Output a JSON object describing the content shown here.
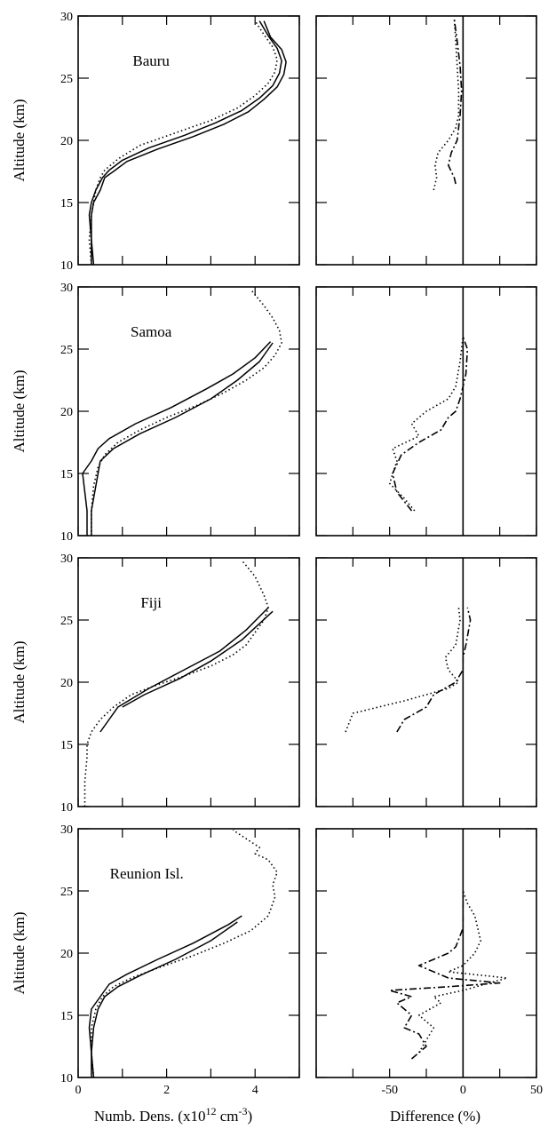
{
  "chart_data": [
    {
      "type": "line",
      "panel": "left",
      "station": "Bauru",
      "ylabel": "Altitude (km)",
      "xlim": [
        0,
        5
      ],
      "ylim": [
        10,
        30
      ],
      "x_ticks": [],
      "y_ticks": [
        "10",
        "15",
        "20",
        "25",
        "30"
      ],
      "series": [
        {
          "style": "dotted",
          "x": [
            0.3,
            0.25,
            0.3,
            0.35,
            0.4,
            0.5,
            0.6,
            0.9,
            1.4,
            2.2,
            3.0,
            3.6,
            4.0,
            4.3,
            4.45,
            4.5,
            4.4,
            4.2,
            4.0
          ],
          "y": [
            10,
            12,
            14,
            15,
            16,
            17,
            17.6,
            18.5,
            19.6,
            20.6,
            21.6,
            22.6,
            23.6,
            24.6,
            25.5,
            26.5,
            27.5,
            28.5,
            29.6
          ]
        },
        {
          "style": "solid",
          "x": [
            0.3,
            0.3,
            0.25,
            0.3,
            0.4,
            0.55,
            0.7,
            1.0,
            1.6,
            2.4,
            3.1,
            3.7,
            4.1,
            4.4,
            4.55,
            4.6,
            4.5,
            4.3,
            4.1
          ],
          "y": [
            10,
            12,
            14,
            15,
            16,
            17,
            17.6,
            18.4,
            19.4,
            20.4,
            21.4,
            22.4,
            23.4,
            24.4,
            25.4,
            26.4,
            27.4,
            28.4,
            29.6
          ]
        },
        {
          "style": "solid",
          "x": [
            0.35,
            0.3,
            0.3,
            0.35,
            0.5,
            0.6,
            0.8,
            1.1,
            1.8,
            2.6,
            3.3,
            3.85,
            4.2,
            4.5,
            4.65,
            4.7,
            4.6,
            4.35,
            4.2
          ],
          "y": [
            10,
            12,
            14,
            15,
            16,
            17,
            17.5,
            18.3,
            19.3,
            20.3,
            21.3,
            22.3,
            23.3,
            24.3,
            25.3,
            26.3,
            27.3,
            28.3,
            29.6
          ]
        }
      ]
    },
    {
      "type": "line",
      "panel": "right",
      "xlim": [
        -100,
        50
      ],
      "ylim": [
        10,
        30
      ],
      "x_ticks": [],
      "y_ticks": [],
      "series": [
        {
          "style": "dotted",
          "x": [
            -20,
            -18,
            -19,
            -17,
            -10,
            -5,
            -3,
            -3,
            -4,
            -5,
            -6
          ],
          "y": [
            16,
            17,
            18,
            19,
            20,
            21,
            22,
            24,
            26,
            28,
            29.8
          ]
        },
        {
          "style": "dashdot",
          "x": [
            -5,
            -6,
            -10,
            -8,
            -4,
            -2,
            -1,
            -2,
            -4,
            -6
          ],
          "y": [
            16.5,
            17,
            18,
            19,
            20,
            22,
            24,
            26,
            28,
            29.8
          ]
        }
      ]
    },
    {
      "type": "line",
      "panel": "left",
      "station": "Samoa",
      "ylabel": "Altitude (km)",
      "xlim": [
        0,
        5
      ],
      "ylim": [
        10,
        30
      ],
      "x_ticks": [],
      "y_ticks": [
        "10",
        "15",
        "20",
        "25",
        "30"
      ],
      "series": [
        {
          "style": "dotted",
          "x": [
            0.3,
            0.3,
            0.35,
            0.45,
            0.6,
            0.9,
            1.4,
            2.0,
            2.7,
            3.3,
            3.8,
            4.2,
            4.45,
            4.6,
            4.55,
            4.4,
            4.2,
            3.9
          ],
          "y": [
            10,
            12,
            14,
            15.5,
            16.5,
            17.5,
            18.5,
            19.5,
            20.5,
            21.5,
            22.5,
            23.5,
            24.5,
            25.5,
            26.5,
            27.5,
            28.5,
            29.8
          ]
        },
        {
          "style": "solid",
          "x": [
            0.3,
            0.3,
            0.4,
            0.5,
            0.8,
            1.4,
            2.2,
            3.0,
            3.6,
            4.1,
            4.4
          ],
          "y": [
            10,
            12,
            14,
            16,
            17,
            18.2,
            19.5,
            21,
            22.5,
            24,
            25.5
          ]
        },
        {
          "style": "solid",
          "x": [
            0.2,
            0.2,
            0.1,
            0.3,
            0.45,
            0.7,
            1.3,
            2.1,
            2.9,
            3.5,
            4.0,
            4.35
          ],
          "y": [
            10,
            12,
            15,
            16,
            17,
            17.8,
            19,
            20.3,
            21.8,
            23,
            24.3,
            25.6
          ]
        }
      ]
    },
    {
      "type": "line",
      "panel": "right",
      "xlim": [
        -100,
        50
      ],
      "ylim": [
        10,
        30
      ],
      "x_ticks": [],
      "y_ticks": [],
      "series": [
        {
          "style": "dotted",
          "x": [
            -33,
            -40,
            -50,
            -45,
            -48,
            -30,
            -35,
            -25,
            -10,
            -5,
            -2,
            0
          ],
          "y": [
            12,
            13,
            14.2,
            16,
            17,
            18,
            19,
            20,
            21,
            22,
            24,
            26
          ]
        },
        {
          "style": "dashdot",
          "x": [
            -35,
            -45,
            -48,
            -42,
            -30,
            -15,
            -10,
            -5,
            -2,
            2,
            3,
            0
          ],
          "y": [
            12,
            13.5,
            15,
            16.5,
            17.5,
            18.5,
            19.5,
            20,
            21,
            23,
            25,
            26
          ]
        }
      ]
    },
    {
      "type": "line",
      "panel": "left",
      "station": "Fiji",
      "ylabel": "Altitude (km)",
      "xlim": [
        0,
        5
      ],
      "ylim": [
        10,
        30
      ],
      "x_ticks": [],
      "y_ticks": [
        "10",
        "15",
        "20",
        "25",
        "30"
      ],
      "series": [
        {
          "style": "dotted",
          "x": [
            0.15,
            0.15,
            0.2,
            0.2,
            0.3,
            0.5,
            0.8,
            1.2,
            1.8,
            2.4,
            3.0,
            3.5,
            3.8,
            4.0,
            4.2,
            4.3,
            4.2,
            4.0,
            3.7
          ],
          "y": [
            10,
            12,
            14,
            15,
            16,
            17,
            18,
            19,
            19.8,
            20.5,
            21.3,
            22.2,
            23,
            24,
            25,
            26,
            27,
            28.5,
            29.8
          ]
        },
        {
          "style": "solid",
          "x": [
            0.5,
            0.9,
            1.6,
            2.4,
            3.2,
            3.8,
            4.3
          ],
          "y": [
            16,
            18,
            19.5,
            21,
            22.5,
            24.2,
            26
          ]
        },
        {
          "style": "solid",
          "x": [
            1.0,
            1.5,
            2.3,
            3.0,
            3.7,
            4.4
          ],
          "y": [
            18,
            19,
            20.3,
            21.7,
            23.4,
            25.7
          ]
        }
      ]
    },
    {
      "type": "line",
      "panel": "right",
      "xlim": [
        -100,
        50
      ],
      "ylim": [
        10,
        30
      ],
      "x_ticks": [],
      "y_ticks": [],
      "series": [
        {
          "style": "dotted",
          "x": [
            -80,
            -75,
            -40,
            -10,
            -3,
            -10,
            -12,
            -5,
            -2,
            -3
          ],
          "y": [
            16,
            17.5,
            18.5,
            19.5,
            20,
            21,
            22,
            23,
            25,
            26
          ]
        },
        {
          "style": "dashdot",
          "x": [
            -45,
            -40,
            -25,
            -20,
            -5,
            0,
            0,
            2,
            5,
            3
          ],
          "y": [
            16,
            17,
            18,
            19,
            20,
            21,
            22,
            23,
            25,
            26
          ]
        }
      ]
    },
    {
      "type": "line",
      "panel": "left",
      "station": "Reunion Isl.",
      "ylabel": "Altitude (km)",
      "xlabel": "Numb. Dens. (x10^12 cm^-3)",
      "xlabel_base": "Numb. Dens. (x10",
      "xlabel_exp1": "12",
      "xlabel_mid": " cm",
      "xlabel_exp2": "-3",
      "xlabel_end": ")",
      "xlim": [
        0,
        5
      ],
      "ylim": [
        10,
        30
      ],
      "x_ticks": [
        "0",
        "2",
        "4"
      ],
      "y_ticks": [
        "10",
        "15",
        "20",
        "25",
        "30"
      ],
      "series": [
        {
          "style": "dotted",
          "x": [
            0.35,
            0.3,
            0.3,
            0.4,
            0.55,
            0.8,
            1.2,
            1.8,
            2.6,
            3.3,
            3.9,
            4.3,
            4.45,
            4.4,
            4.5,
            4.3,
            4.0,
            4.1,
            3.8,
            3.5
          ],
          "y": [
            10,
            12,
            14,
            15.5,
            16.5,
            17.3,
            18,
            18.8,
            19.8,
            20.8,
            21.8,
            23,
            24.5,
            25.5,
            26.5,
            27.5,
            28,
            28.5,
            29.2,
            29.9
          ]
        },
        {
          "style": "solid",
          "x": [
            0.3,
            0.3,
            0.25,
            0.3,
            0.5,
            0.7,
            1.1,
            1.8,
            2.6,
            3.4,
            3.7
          ],
          "y": [
            10,
            12,
            14,
            15.5,
            16.5,
            17.5,
            18.3,
            19.5,
            20.8,
            22.3,
            23
          ]
        },
        {
          "style": "solid",
          "x": [
            0.35,
            0.3,
            0.35,
            0.45,
            0.6,
            0.9,
            1.4,
            2.2,
            3.0,
            3.6
          ],
          "y": [
            10,
            12,
            14,
            15.5,
            16.5,
            17.3,
            18.2,
            19.5,
            21,
            22.5
          ]
        }
      ]
    },
    {
      "type": "line",
      "panel": "right",
      "xlabel": "Difference (%)",
      "xlim": [
        -100,
        50
      ],
      "ylim": [
        10,
        30
      ],
      "x_ticks": [
        "-50",
        "0",
        "50"
      ],
      "y_ticks": [],
      "series": [
        {
          "style": "dotted",
          "x": [
            -30,
            -25,
            -20,
            -30,
            -15,
            -20,
            0,
            30,
            -10,
            0,
            8,
            12,
            10,
            8,
            3,
            0
          ],
          "y": [
            12,
            13,
            14,
            15,
            16,
            16.5,
            17,
            18,
            18.5,
            19,
            20,
            21,
            22,
            23,
            24,
            25
          ]
        },
        {
          "style": "dashdot",
          "x": [
            -35,
            -25,
            -30,
            -40,
            -35,
            -45,
            -35,
            -50,
            -10,
            25,
            -10,
            -30,
            -10,
            -5,
            0,
            0
          ],
          "y": [
            11.5,
            12.5,
            13.5,
            14,
            15,
            16,
            16.5,
            17,
            17.3,
            17.6,
            18,
            19,
            20,
            20.5,
            22,
            25
          ]
        }
      ]
    }
  ]
}
